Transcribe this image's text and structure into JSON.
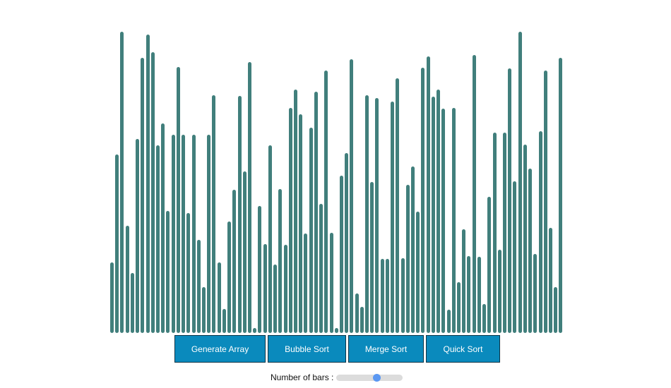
{
  "bar_color": "#417f7c",
  "button_color": "#0a8abd",
  "slider_accent": "#5b98f2",
  "array": {
    "bar_count": 89,
    "values": [
      100,
      253,
      427,
      152,
      85,
      275,
      390,
      423,
      398,
      266,
      297,
      173,
      281,
      377,
      281,
      170,
      281,
      132,
      65,
      281,
      337,
      100,
      34,
      158,
      203,
      336,
      229,
      384,
      7,
      180,
      126,
      266,
      97,
      204,
      125,
      319,
      345,
      310,
      141,
      291,
      342,
      183,
      372,
      142,
      7,
      223,
      255,
      388,
      56,
      37,
      337,
      214,
      333,
      105,
      105,
      328,
      361,
      106,
      210,
      236,
      172,
      376,
      392,
      335,
      345,
      318,
      33,
      319,
      72,
      147,
      109,
      394,
      108,
      41,
      193,
      284,
      118,
      284,
      375,
      215,
      427,
      267,
      233,
      112,
      286,
      372,
      149,
      65,
      390
    ]
  },
  "controls": {
    "generate_label": "Generate Array",
    "bubble_label": "Bubble Sort",
    "merge_label": "Merge Sort",
    "quick_label": "Quick Sort"
  },
  "slider": {
    "label": "Number of bars :",
    "fraction": 0.62
  }
}
